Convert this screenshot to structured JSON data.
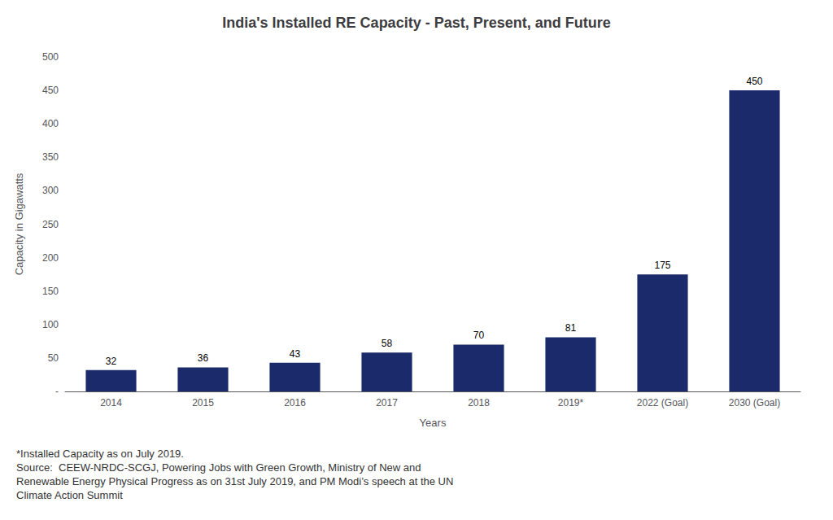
{
  "chart_data": {
    "type": "bar",
    "title": "India's Installed RE Capacity - Past, Present, and Future",
    "categories": [
      "2014",
      "2015",
      "2016",
      "2017",
      "2018",
      "2019*",
      "2022 (Goal)",
      "2030 (Goal)"
    ],
    "values": [
      32,
      36,
      43,
      58,
      70,
      81,
      175,
      450
    ],
    "color": "#1B2A6B",
    "xlabel": "Years",
    "ylabel": "Capacity in Gigawatts",
    "ylim": [
      0,
      500
    ],
    "yticks": [
      {
        "value": 0,
        "label": "-"
      },
      50,
      100,
      150,
      200,
      250,
      300,
      350,
      400,
      450,
      500
    ],
    "grid": false,
    "data_labels": true,
    "annotations": [
      "*Installed Capacity as on July 2019.",
      "Source:  CEEW-NRDC-SCGJ, Powering Jobs with Green Growth, Ministry of New and",
      "Renewable Energy Physical Progress as on 31st July 2019, and PM Modi’s speech at the UN",
      "Climate Action Summit"
    ]
  }
}
